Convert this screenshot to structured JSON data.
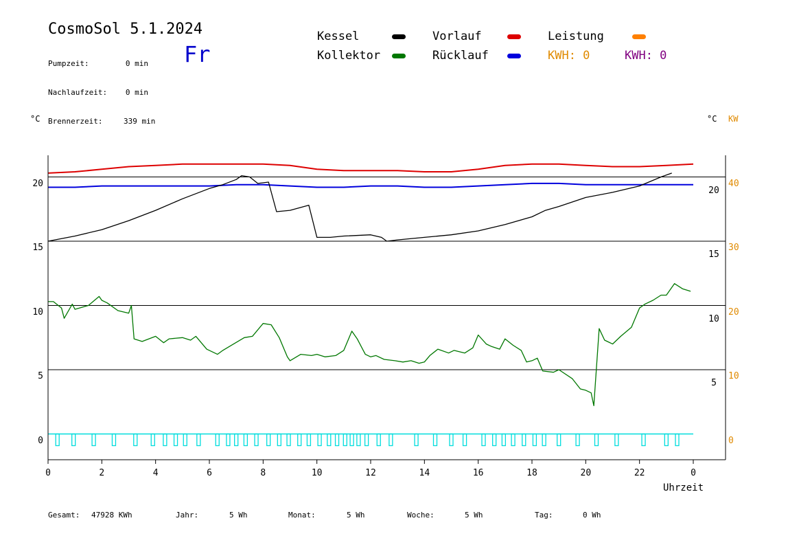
{
  "header": {
    "title": "CosmoSol 5.1.2024",
    "day": "Fr",
    "stats": [
      {
        "label": "Pumpzeit:",
        "value": "0 min"
      },
      {
        "label": "Nachlaufzeit:",
        "value": "0 min"
      },
      {
        "label": "Brennerzeit:",
        "value": "339 min"
      }
    ]
  },
  "legend": {
    "kessel": "Kessel",
    "kollektor": "Kollektor",
    "vorlauf": "Vorlauf",
    "ruecklauf": "Rücklauf",
    "leistung": "Leistung",
    "kwh_orange": "KWH: 0",
    "kwh_purple": "KWH: 0"
  },
  "colors": {
    "kessel": "#000000",
    "kollektor": "#007700",
    "vorlauf": "#dd0000",
    "ruecklauf": "#0000dd",
    "leistung": "#ff8000",
    "kwh_purple": "#800080",
    "pump": "#00dddd"
  },
  "footer": {
    "gesamt_label": "Gesamt:",
    "gesamt_value": "47928 KWh",
    "jahr_label": "Jahr:",
    "jahr_value": "5 Wh",
    "monat_label": "Monat:",
    "monat_value": "5 Wh",
    "woche_label": "Woche:",
    "woche_value": "5 Wh",
    "tag_label": "Tag:",
    "tag_value": "0 Wh"
  },
  "chart_data": {
    "type": "line",
    "xlabel": "Uhrzeit",
    "ylabel_left": "°C",
    "ylabel_right": "°C",
    "ylabel_right2": "KW",
    "xlim": [
      0,
      24
    ],
    "ylim": [
      -1.7,
      22
    ],
    "ylim_power": [
      -3.4,
      44
    ],
    "x_ticks": [
      "0",
      "2",
      "4",
      "6",
      "8",
      "10",
      "12",
      "14",
      "16",
      "18",
      "20",
      "22",
      "0"
    ],
    "y_ticks_left": [
      "0",
      "5",
      "10",
      "15",
      "20"
    ],
    "y_ticks_right": [
      "5",
      "10",
      "15",
      "20"
    ],
    "y_ticks_kw": [
      "0",
      "10",
      "20",
      "30",
      "40"
    ],
    "grid": "horizontal",
    "series": [
      {
        "name": "Vorlauf",
        "color": "#dd0000",
        "x": [
          0,
          1,
          2,
          3,
          4,
          5,
          6,
          7,
          8,
          9,
          10,
          11,
          12,
          13,
          14,
          15,
          16,
          17,
          18,
          19,
          20,
          21,
          22,
          23,
          24
        ],
        "y": [
          20.3,
          20.4,
          20.6,
          20.8,
          20.9,
          21.0,
          21.0,
          21.0,
          21.0,
          20.9,
          20.6,
          20.5,
          20.5,
          20.5,
          20.4,
          20.4,
          20.6,
          20.9,
          21.0,
          21.0,
          20.9,
          20.8,
          20.8,
          20.9,
          21.0
        ]
      },
      {
        "name": "Rücklauf",
        "color": "#0000dd",
        "x": [
          0,
          1,
          2,
          3,
          4,
          5,
          6,
          7,
          8,
          9,
          10,
          11,
          12,
          13,
          14,
          15,
          16,
          17,
          18,
          19,
          20,
          21,
          22,
          23,
          24
        ],
        "y": [
          19.2,
          19.2,
          19.3,
          19.3,
          19.3,
          19.3,
          19.3,
          19.4,
          19.4,
          19.3,
          19.2,
          19.2,
          19.3,
          19.3,
          19.2,
          19.2,
          19.3,
          19.4,
          19.5,
          19.5,
          19.4,
          19.4,
          19.4,
          19.4,
          19.4
        ]
      },
      {
        "name": "Kessel",
        "color": "#000000",
        "x": [
          0,
          1,
          2,
          3,
          4,
          5,
          6,
          6.5,
          7,
          7.2,
          7.5,
          7.8,
          8.2,
          8.5,
          9.0,
          9.7,
          10.0,
          10.5,
          11.0,
          12.0,
          12.4,
          12.6,
          13.0,
          14.0,
          15.0,
          16.0,
          17.0,
          18.0,
          18.5,
          19.0,
          20.0,
          21.0,
          22.0,
          22.8,
          23.2
        ],
        "y": [
          15.0,
          15.4,
          15.9,
          16.6,
          17.4,
          18.3,
          19.1,
          19.4,
          19.8,
          20.1,
          20.0,
          19.5,
          19.6,
          17.3,
          17.4,
          17.8,
          15.3,
          15.3,
          15.4,
          15.5,
          15.3,
          15.0,
          15.1,
          15.3,
          15.5,
          15.8,
          16.3,
          16.9,
          17.4,
          17.7,
          18.4,
          18.8,
          19.3,
          20.0,
          20.3
        ]
      },
      {
        "name": "Kollektor",
        "color": "#007700",
        "x": [
          0,
          0.2,
          0.5,
          0.6,
          0.9,
          1.0,
          1.5,
          1.9,
          2.0,
          2.2,
          2.6,
          3.0,
          3.1,
          3.2,
          3.5,
          4.0,
          4.3,
          4.5,
          5.0,
          5.3,
          5.5,
          5.9,
          6.3,
          6.5,
          6.9,
          7.3,
          7.6,
          8.0,
          8.3,
          8.6,
          8.9,
          9.0,
          9.4,
          9.8,
          10.0,
          10.3,
          10.7,
          11.0,
          11.3,
          11.5,
          11.8,
          12.0,
          12.2,
          12.5,
          12.9,
          13.2,
          13.5,
          13.8,
          14.0,
          14.2,
          14.5,
          14.9,
          15.1,
          15.5,
          15.8,
          16.0,
          16.3,
          16.5,
          16.8,
          17.0,
          17.3,
          17.6,
          17.8,
          18.0,
          18.2,
          18.4,
          18.8,
          19.0,
          19.5,
          19.8,
          20.0,
          20.2,
          20.3,
          20.5,
          20.7,
          21.0,
          21.3,
          21.7,
          22.0,
          22.2,
          22.5,
          22.8,
          23.0,
          23.3,
          23.6,
          23.9
        ],
        "y": [
          10.3,
          10.3,
          9.8,
          9.0,
          10.1,
          9.7,
          10.0,
          10.7,
          10.4,
          10.2,
          9.6,
          9.4,
          10.0,
          7.4,
          7.2,
          7.6,
          7.1,
          7.4,
          7.5,
          7.3,
          7.6,
          6.6,
          6.2,
          6.5,
          7.0,
          7.5,
          7.6,
          8.6,
          8.5,
          7.5,
          6.0,
          5.7,
          6.2,
          6.1,
          6.2,
          6.0,
          6.1,
          6.5,
          8.0,
          7.4,
          6.2,
          6.0,
          6.1,
          5.8,
          5.7,
          5.6,
          5.7,
          5.5,
          5.6,
          6.1,
          6.6,
          6.3,
          6.5,
          6.3,
          6.7,
          7.7,
          7.0,
          6.8,
          6.6,
          7.4,
          6.9,
          6.5,
          5.6,
          5.7,
          5.9,
          4.9,
          4.8,
          5.0,
          4.3,
          3.5,
          3.4,
          3.2,
          2.2,
          8.2,
          7.3,
          7.0,
          7.6,
          8.3,
          9.8,
          10.1,
          10.4,
          10.8,
          10.8,
          11.7,
          11.3,
          11.1
        ]
      }
    ],
    "pump_pulses_x": [
      0.35,
      0.95,
      1.7,
      2.45,
      3.25,
      3.9,
      4.35,
      4.75,
      5.1,
      5.6,
      6.3,
      6.7,
      7.0,
      7.35,
      7.75,
      8.2,
      8.6,
      8.95,
      9.35,
      9.7,
      10.1,
      10.45,
      10.75,
      11.05,
      11.3,
      11.55,
      11.85,
      12.3,
      12.75,
      13.7,
      14.4,
      15.0,
      15.5,
      16.2,
      16.6,
      16.95,
      17.3,
      17.7,
      18.1,
      18.45,
      19.0,
      19.7,
      20.4,
      21.15,
      22.15,
      23.0,
      23.4
    ],
    "kollektor_peak_note": ""
  }
}
